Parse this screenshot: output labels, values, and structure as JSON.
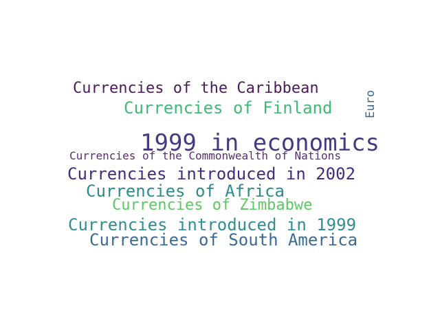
{
  "words": [
    {
      "id": "caribbean",
      "text": "Currencies of the Caribbean",
      "color": "#4b1b5e"
    },
    {
      "id": "finland",
      "text": "Currencies of Finland",
      "color": "#3dbb75"
    },
    {
      "id": "euro",
      "text": "Euro",
      "color": "#3a6a96"
    },
    {
      "id": "economics-1999",
      "text": "1999 in economics",
      "color": "#453a82"
    },
    {
      "id": "commonwealth",
      "text": "Currencies of the Commonwealth of Nations",
      "color": "#5a2d73"
    },
    {
      "id": "introduced-2002",
      "text": "Currencies introduced in 2002",
      "color": "#432c7d"
    },
    {
      "id": "africa",
      "text": "Currencies of Africa",
      "color": "#2d8a8a"
    },
    {
      "id": "zimbabwe",
      "text": "Currencies of Zimbabwe",
      "color": "#5cc863"
    },
    {
      "id": "introduced-1999",
      "text": "Currencies introduced in 1999",
      "color": "#2f8d94"
    },
    {
      "id": "south-america",
      "text": "Currencies of South America",
      "color": "#3a6a96"
    }
  ]
}
